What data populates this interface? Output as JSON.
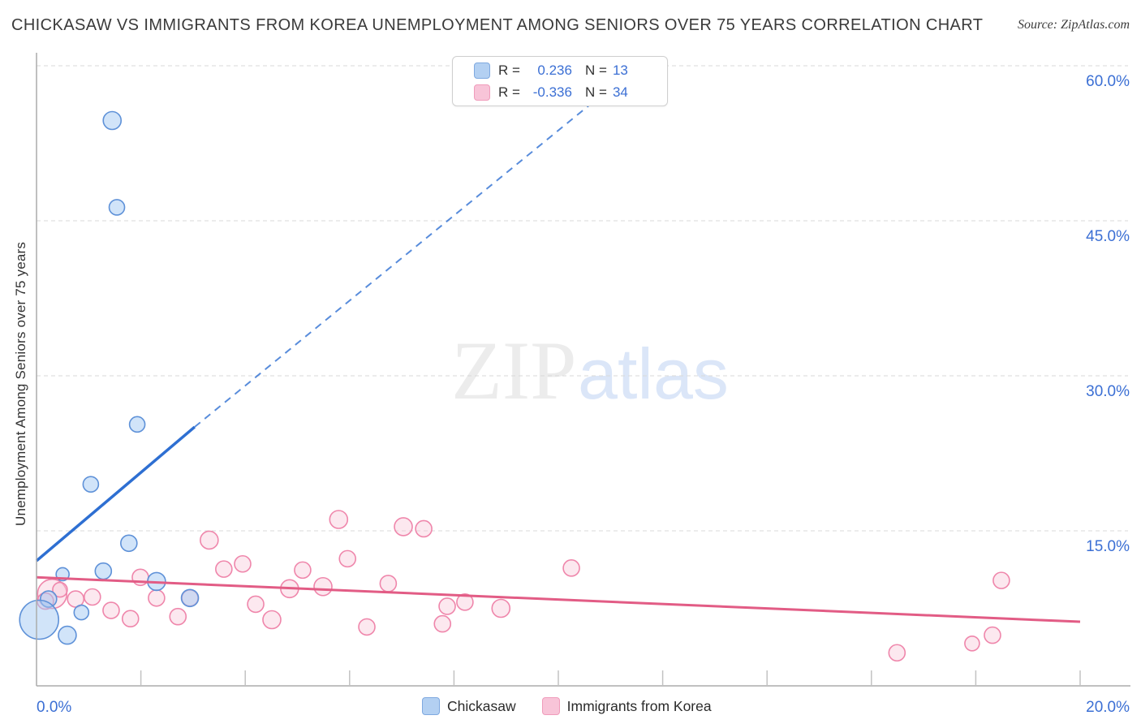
{
  "header": {
    "title": "CHICKASAW VS IMMIGRANTS FROM KOREA UNEMPLOYMENT AMONG SENIORS OVER 75 YEARS CORRELATION CHART",
    "source": "Source: ZipAtlas.com"
  },
  "y_axis": {
    "label": "Unemployment Among Seniors over 75 years",
    "tick_values": [
      60,
      45,
      30,
      15
    ],
    "tick_labels": [
      "60.0%",
      "45.0%",
      "30.0%",
      "15.0%"
    ]
  },
  "x_axis": {
    "min_label": "0.0%",
    "max_label": "20.0%",
    "tick_step_percent": 2,
    "tick_values": [
      2,
      4,
      6,
      8,
      10,
      12,
      14,
      16,
      18,
      20
    ]
  },
  "legend_box": {
    "rows": [
      {
        "series": "chickasaw",
        "r_label": "R =",
        "r_value": "0.236",
        "n_label": "N =",
        "n_value": "13"
      },
      {
        "series": "korea",
        "r_label": "R =",
        "r_value": "-0.336",
        "n_label": "N =",
        "n_value": "34"
      }
    ]
  },
  "bottom_legend": {
    "items": [
      {
        "key": "chickasaw",
        "label": "Chickasaw"
      },
      {
        "key": "korea",
        "label": "Immigrants from Korea"
      }
    ]
  },
  "watermark": {
    "part1": "ZIP",
    "part2": "atlas"
  },
  "colors": {
    "chickasaw_fill": "rgba(163,201,243,0.5)",
    "chickasaw_stroke": "#5e91d8",
    "korea_fill": "rgba(248,199,217,0.42)",
    "korea_stroke": "#ef86ab",
    "chickasaw_trend": "#2e6fd2",
    "korea_trend": "#e25c85",
    "value_text": "#3b6fd4",
    "grid": "#d9d9d9",
    "axis": "#ababab",
    "tick": "#c2c2c2",
    "watermark_zip": "#ececec",
    "watermark_atlas": "#dbe6f8"
  },
  "chart_data": {
    "type": "scatter",
    "title": "Chickasaw vs Immigrants from Korea Unemployment Among Seniors over 75 years",
    "xlabel": "",
    "ylabel": "Unemployment Among Seniors over 75 years",
    "x_unit": "%",
    "y_unit": "%",
    "xlim": [
      0,
      20
    ],
    "ylim": [
      0,
      61.3
    ],
    "grid": "dashed-horizontal",
    "legend_position": "top-center and bottom-center",
    "series": [
      {
        "name": "Chickasaw",
        "R": 0.236,
        "N": 13,
        "points": [
          [
            1.45,
            54.7,
            11
          ],
          [
            1.54,
            46.3,
            9.5
          ],
          [
            1.93,
            25.3,
            9.5
          ],
          [
            1.04,
            19.5,
            9.5
          ],
          [
            1.77,
            13.8,
            10
          ],
          [
            0.5,
            10.8,
            8
          ],
          [
            1.28,
            11.1,
            10
          ],
          [
            2.3,
            10.1,
            11
          ],
          [
            0.23,
            8.4,
            10
          ],
          [
            0.05,
            6.4,
            24
          ],
          [
            0.86,
            7.1,
            9
          ],
          [
            0.59,
            4.9,
            11
          ],
          [
            2.94,
            8.5,
            10.5
          ]
        ]
      },
      {
        "name": "Immigrants from Korea",
        "R": -0.336,
        "N": 34,
        "points": [
          [
            0.3,
            8.9,
            18
          ],
          [
            0.17,
            8.2,
            10
          ],
          [
            0.45,
            9.3,
            9
          ],
          [
            0.75,
            8.4,
            10
          ],
          [
            1.07,
            8.6,
            10
          ],
          [
            1.43,
            7.3,
            10
          ],
          [
            1.8,
            6.5,
            10
          ],
          [
            1.99,
            10.5,
            10
          ],
          [
            2.3,
            8.5,
            10
          ],
          [
            2.71,
            6.7,
            10
          ],
          [
            2.94,
            8.5,
            10
          ],
          [
            3.31,
            14.1,
            11
          ],
          [
            3.59,
            11.3,
            10
          ],
          [
            3.95,
            11.8,
            10
          ],
          [
            4.2,
            7.9,
            10
          ],
          [
            4.51,
            6.4,
            11
          ],
          [
            4.85,
            9.4,
            11
          ],
          [
            5.1,
            11.2,
            10
          ],
          [
            5.49,
            9.6,
            11
          ],
          [
            5.79,
            16.1,
            11
          ],
          [
            5.96,
            12.3,
            10
          ],
          [
            6.33,
            5.7,
            10
          ],
          [
            6.74,
            9.9,
            10
          ],
          [
            7.03,
            15.4,
            11
          ],
          [
            7.42,
            15.2,
            10
          ],
          [
            7.78,
            6.0,
            10
          ],
          [
            7.87,
            7.7,
            10
          ],
          [
            8.21,
            8.1,
            10
          ],
          [
            8.9,
            7.5,
            11
          ],
          [
            10.25,
            11.4,
            10
          ],
          [
            16.49,
            3.2,
            10
          ],
          [
            17.93,
            4.1,
            9
          ],
          [
            18.32,
            4.9,
            10
          ],
          [
            18.49,
            10.2,
            10
          ]
        ]
      }
    ],
    "trend_lines": [
      {
        "series": "Chickasaw",
        "solid": [
          [
            0,
            12.1
          ],
          [
            3.03,
            25.05
          ]
        ],
        "dashed": [
          [
            3.03,
            25.05
          ],
          [
            11.52,
            60.0
          ]
        ]
      },
      {
        "series": "Immigrants from Korea",
        "solid": [
          [
            0,
            10.5
          ],
          [
            20,
            6.2
          ]
        ]
      }
    ]
  }
}
